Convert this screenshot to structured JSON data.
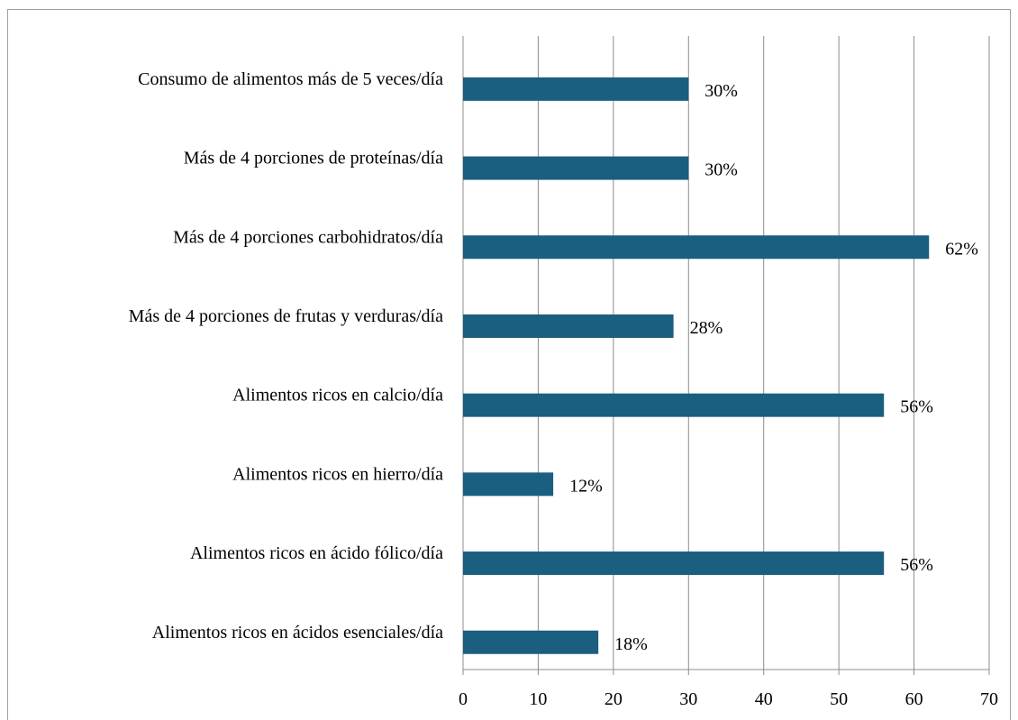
{
  "chart_data": {
    "type": "bar",
    "orientation": "horizontal",
    "categories": [
      "Consumo de alimentos más de 5 veces/día",
      "Más de 4 porciones de proteínas/día",
      "Más de 4 porciones carbohidratos/día",
      "Más de 4 porciones de frutas y verduras/día",
      "Alimentos ricos en calcio/día",
      "Alimentos ricos en hierro/día",
      "Alimentos ricos en ácido fólico/día",
      "Alimentos ricos en ácidos esenciales/día"
    ],
    "values": [
      30,
      30,
      62,
      28,
      56,
      12,
      56,
      18
    ],
    "value_labels": [
      "30%",
      "30%",
      "62%",
      "28%",
      "56%",
      "12%",
      "56%",
      "18%"
    ],
    "color": "#1a5e80",
    "xlim": [
      0,
      70
    ],
    "xticks": [
      0,
      10,
      20,
      30,
      40,
      50,
      60,
      70
    ],
    "grid": true
  }
}
